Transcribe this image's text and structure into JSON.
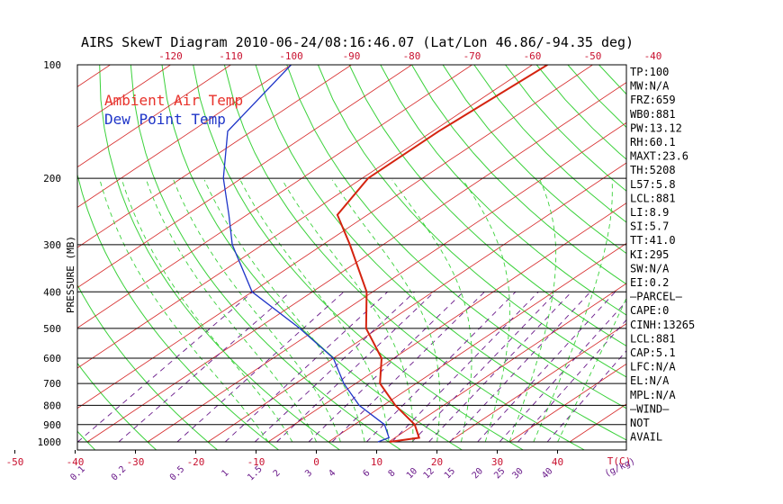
{
  "chart_data": {
    "type": "line",
    "title": "AIRS SkewT Diagram 2010-06-24/08:16:46.07 (Lat/Lon 46.86/-94.35 deg)",
    "ylabel": "PRESSURE (MB)",
    "y_axis_scale": "log",
    "y_ticks": [
      {
        "p": 100,
        "label": "100"
      },
      {
        "p": 200,
        "label": "200"
      },
      {
        "p": 300,
        "label": "300"
      },
      {
        "p": 400,
        "label": "400"
      },
      {
        "p": 500,
        "label": "500"
      },
      {
        "p": 600,
        "label": "600"
      },
      {
        "p": 700,
        "label": "700"
      },
      {
        "p": 800,
        "label": "800"
      },
      {
        "p": 900,
        "label": "900"
      },
      {
        "p": 1000,
        "label": "1000"
      }
    ],
    "temp_ticks_bottom": [
      "-50",
      "-40",
      "-30",
      "-20",
      "-10",
      "0",
      "10",
      "20",
      "30",
      "40"
    ],
    "temp_ticks_top": [
      "-120",
      "-110",
      "-100",
      "-90",
      "-80",
      "-70",
      "-60",
      "-50",
      "-40"
    ],
    "mixing_ratio_labels": [
      "0.1",
      "0.2",
      "0.5",
      "1",
      "1.5",
      "2",
      "3",
      "4",
      "6",
      "8",
      "10",
      "12",
      "15",
      "20",
      "25",
      "30",
      "40"
    ],
    "xlabel_right": "T(C)",
    "mixing_ratio_unit": "(g/kg)",
    "legend": [
      {
        "name": "Ambient Air Temp",
        "color": "#e8322b"
      },
      {
        "name": "Dew Point Temp",
        "color": "#1f35c8"
      }
    ],
    "series": [
      {
        "name": "Ambient Air Temp",
        "color": "#d4230f",
        "points": [
          {
            "p": 1000,
            "t": 10.1
          },
          {
            "p": 975,
            "t": 14.0
          },
          {
            "p": 900,
            "t": 10.0
          },
          {
            "p": 800,
            "t": 2.0
          },
          {
            "p": 700,
            "t": -6.0
          },
          {
            "p": 600,
            "t": -12.0
          },
          {
            "p": 500,
            "t": -22.0
          },
          {
            "p": 400,
            "t": -31.0
          },
          {
            "p": 300,
            "t": -45.5
          },
          {
            "p": 250,
            "t": -55.0
          },
          {
            "p": 200,
            "t": -59.0
          },
          {
            "p": 150,
            "t": -59.0
          },
          {
            "p": 100,
            "t": -57.5
          }
        ]
      },
      {
        "name": "Dew Point Temp",
        "color": "#1f35c8",
        "points": [
          {
            "p": 1000,
            "t": 8.2
          },
          {
            "p": 975,
            "t": 9.0
          },
          {
            "p": 900,
            "t": 5.0
          },
          {
            "p": 800,
            "t": -4.0
          },
          {
            "p": 700,
            "t": -12.0
          },
          {
            "p": 600,
            "t": -20.0
          },
          {
            "p": 500,
            "t": -33.0
          },
          {
            "p": 400,
            "t": -50.0
          },
          {
            "p": 300,
            "t": -65.0
          },
          {
            "p": 250,
            "t": -73.0
          },
          {
            "p": 200,
            "t": -83.0
          },
          {
            "p": 150,
            "t": -94.0
          },
          {
            "p": 100,
            "t": -100.0
          }
        ]
      }
    ],
    "stats": [
      "TP:100",
      "MW:N/A",
      "FRZ:659",
      "WB0:881",
      "PW:13.12",
      "RH:60.1",
      "MAXT:23.6",
      "TH:5208",
      "L57:5.8",
      "LCL:881",
      "LI:8.9",
      "SI:5.7",
      "TT:41.0",
      "KI:295",
      "SW:N/A",
      "EI:0.2",
      "—PARCEL—",
      "CAPE:0",
      "CINH:13265",
      "LCL:881",
      "CAP:5.1",
      "LFC:N/A",
      "EL:N/A",
      "MPL:N/A",
      "—WIND—",
      "NOT",
      "AVAIL"
    ]
  }
}
